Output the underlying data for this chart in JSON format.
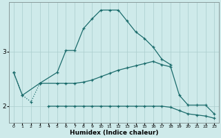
{
  "xlabel": "Humidex (Indice chaleur)",
  "bg_color": "#ceeaea",
  "grid_color": "#aacccc",
  "line_color": "#1a6b6b",
  "ylim": [
    1.7,
    3.9
  ],
  "yticks": [
    2,
    3
  ],
  "xlim": [
    -0.5,
    23.5
  ],
  "line_main": {
    "x": [
      0,
      1,
      3,
      5,
      6,
      7,
      8,
      9,
      10,
      11,
      12,
      13,
      14,
      15,
      16,
      17,
      18
    ],
    "y": [
      2.62,
      2.2,
      2.42,
      2.62,
      3.02,
      3.02,
      3.42,
      3.6,
      3.76,
      3.76,
      3.76,
      3.56,
      3.36,
      3.24,
      3.08,
      2.86,
      2.76
    ],
    "style": "solid"
  },
  "line_dotted": {
    "x": [
      0,
      1,
      2,
      3
    ],
    "y": [
      2.62,
      2.2,
      2.08,
      2.42
    ],
    "style": "dotted"
  },
  "line_upper": {
    "x": [
      3,
      5,
      6,
      7,
      8,
      9,
      10,
      11,
      12,
      13,
      14,
      15,
      16,
      17,
      18,
      19,
      20,
      21,
      22,
      23
    ],
    "y": [
      2.42,
      2.42,
      2.42,
      2.42,
      2.44,
      2.48,
      2.54,
      2.6,
      2.66,
      2.7,
      2.74,
      2.78,
      2.82,
      2.76,
      2.72,
      2.2,
      2.02,
      2.02,
      2.02,
      1.86
    ]
  },
  "line_lower": {
    "x": [
      4,
      5,
      6,
      7,
      8,
      9,
      10,
      11,
      12,
      13,
      14,
      15,
      16,
      17,
      18,
      19,
      20,
      21,
      22,
      23
    ],
    "y": [
      2.0,
      2.0,
      2.0,
      2.0,
      2.0,
      2.0,
      2.0,
      2.0,
      2.0,
      2.0,
      2.0,
      2.0,
      2.0,
      2.0,
      1.98,
      1.92,
      1.86,
      1.84,
      1.82,
      1.78
    ]
  }
}
